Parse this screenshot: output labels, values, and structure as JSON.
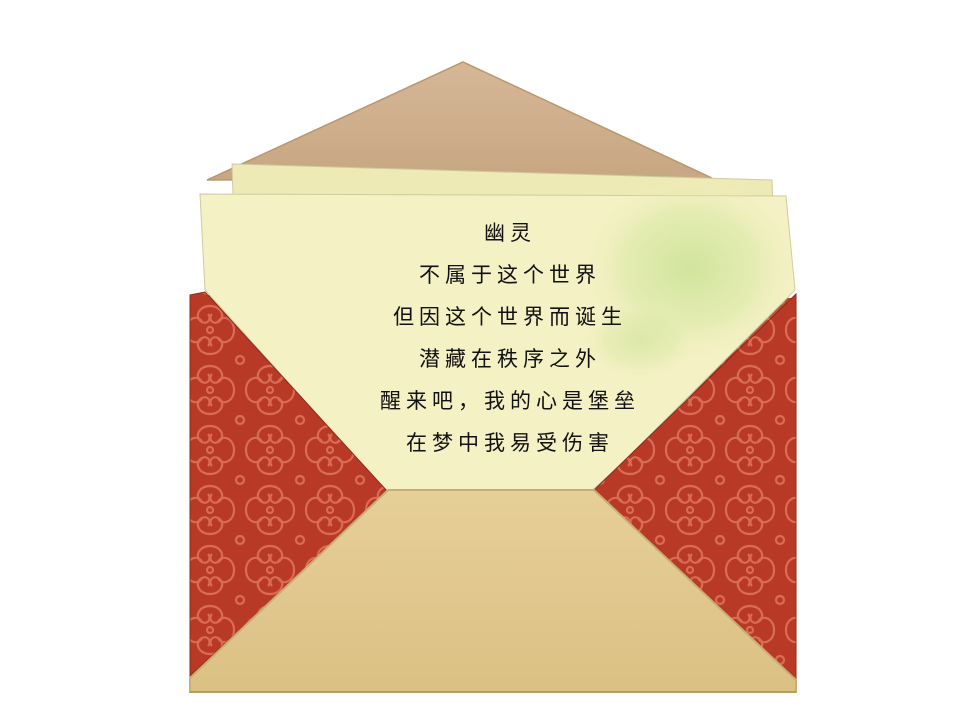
{
  "letter": {
    "title": "幽灵",
    "lines": [
      "不属于这个世界",
      "但因这个世界而诞生",
      "潜藏在秩序之外",
      "醒来吧，我的心是堡垒",
      "在梦中我易受伤害"
    ]
  },
  "colors": {
    "flap_top": "#cfb08e",
    "paper": "#f4f1c4",
    "paper_wash": "#d9e8a6",
    "pattern_bg": "#b83a26",
    "pattern_line": "#e0745a",
    "front_flap": "#e3c98e",
    "front_flap_edge": "#c9ad74"
  }
}
